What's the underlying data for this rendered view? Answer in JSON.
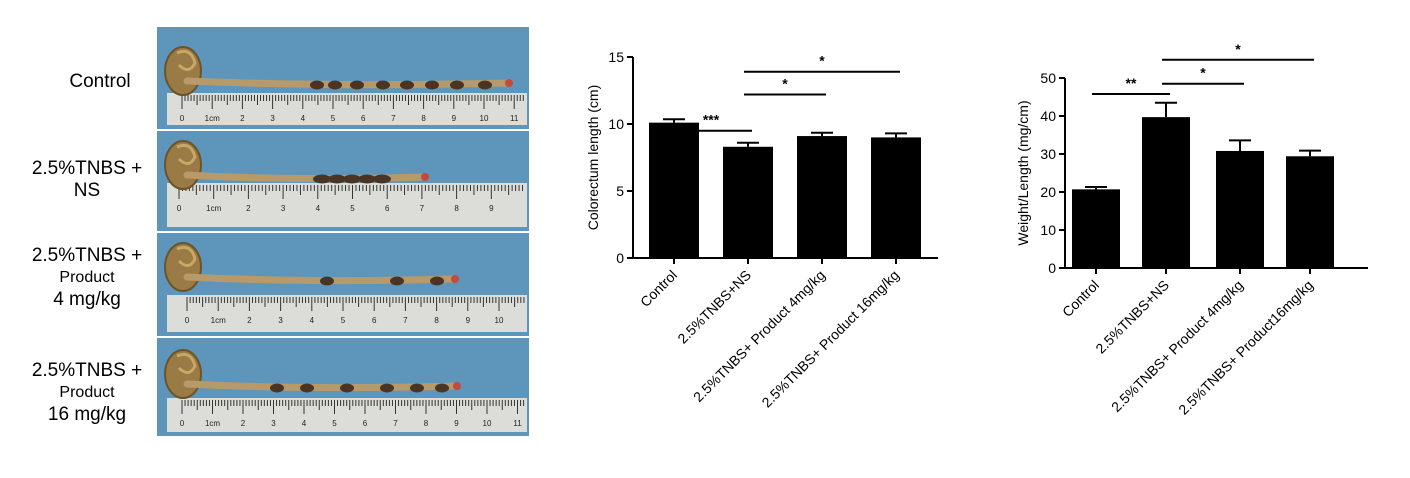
{
  "photo_panel": {
    "rows": [
      {
        "lines": [
          "Control"
        ]
      },
      {
        "lines": [
          "2.5%TNBS +",
          "NS"
        ]
      },
      {
        "lines": [
          "2.5%TNBS +",
          "Product",
          "4 mg/kg"
        ]
      },
      {
        "lines": [
          "2.5%TNBS +",
          "Product",
          "16 mg/kg"
        ]
      }
    ],
    "ruler_marks": [
      [
        "0",
        "1cm",
        "2",
        "3",
        "4",
        "5",
        "6",
        "7",
        "8",
        "9",
        "10",
        "11"
      ],
      [
        "0",
        "1cm",
        "2",
        "3",
        "4",
        "5",
        "6",
        "7",
        "8",
        "9"
      ],
      [
        "0",
        "1cm",
        "2",
        "3",
        "4",
        "5",
        "6",
        "7",
        "8",
        "9",
        "10"
      ],
      [
        "0",
        "1cm",
        "2",
        "3",
        "4",
        "5",
        "6",
        "7",
        "8",
        "9",
        "10",
        "11"
      ]
    ],
    "colors": {
      "background": "#5e95ba",
      "ruler": "#dcdcd8",
      "colon": "#b89a6a",
      "feces": "#4a3525",
      "cecum": "#9a7a45"
    }
  },
  "chart_data": [
    {
      "type": "bar",
      "categories": [
        "Control",
        "2.5%TNBS+NS",
        "2.5%TNBS+ Product 4mg/kg",
        "2.5%TNBS+ Product 16mg/kg"
      ],
      "values": [
        10.1,
        8.3,
        9.1,
        9.0
      ],
      "errors": [
        0.25,
        0.3,
        0.25,
        0.3
      ],
      "ylabel": "Colorectum length (cm)",
      "ylim": [
        0,
        15
      ],
      "yticks": [
        0,
        5,
        10,
        15
      ],
      "bar_color": "#000000",
      "significance": [
        {
          "from": 0,
          "to": 1,
          "label": "***",
          "level": 9.5
        },
        {
          "from": 1,
          "to": 2,
          "label": "*",
          "level": 12.2
        },
        {
          "from": 1,
          "to": 3,
          "label": "*",
          "level": 13.9
        }
      ]
    },
    {
      "type": "bar",
      "categories": [
        "Control",
        "2.5%TNBS+NS",
        "2.5%TNBS+ Product 4mg/kg",
        "2.5%TNBS+ Product16mg/kg"
      ],
      "values": [
        20.7,
        39.7,
        30.8,
        29.4
      ],
      "errors": [
        0.6,
        3.8,
        2.8,
        1.5
      ],
      "ylabel": "Weight/Length (mg/cm)",
      "ylim": [
        0,
        50
      ],
      "yticks": [
        0,
        10,
        20,
        30,
        40,
        50
      ],
      "bar_color": "#000000",
      "significance": [
        {
          "from": 0,
          "to": 1,
          "label": "**",
          "level": 45.8
        },
        {
          "from": 1,
          "to": 2,
          "label": "*",
          "level": 48.5
        },
        {
          "from": 1,
          "to": 3,
          "label": "*",
          "level": 54.8
        }
      ]
    }
  ]
}
